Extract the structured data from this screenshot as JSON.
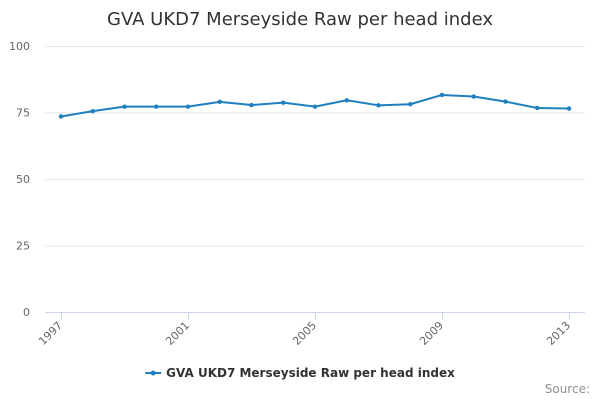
{
  "chart_data": {
    "type": "line",
    "title": "GVA UKD7 Merseyside Raw per head index",
    "xlabel": "",
    "ylabel": "",
    "ylim": [
      0,
      100
    ],
    "yticks": [
      0,
      25,
      50,
      75,
      100
    ],
    "x": [
      1997,
      1998,
      1999,
      2000,
      2001,
      2002,
      2003,
      2004,
      2005,
      2006,
      2007,
      2008,
      2009,
      2010,
      2011,
      2012,
      2013
    ],
    "xticks": [
      1997,
      2001,
      2005,
      2009,
      2013
    ],
    "series": [
      {
        "name": "GVA UKD7 Merseyside Raw per head index",
        "color": "#1f7fbf",
        "values": [
          73.5,
          75.5,
          77.2,
          77.2,
          77.2,
          79.0,
          77.8,
          78.7,
          77.2,
          79.6,
          77.7,
          78.1,
          81.6,
          81.0,
          79.1,
          76.7,
          76.5
        ]
      }
    ],
    "legend_position": "bottom-center",
    "credit": "Source:"
  }
}
